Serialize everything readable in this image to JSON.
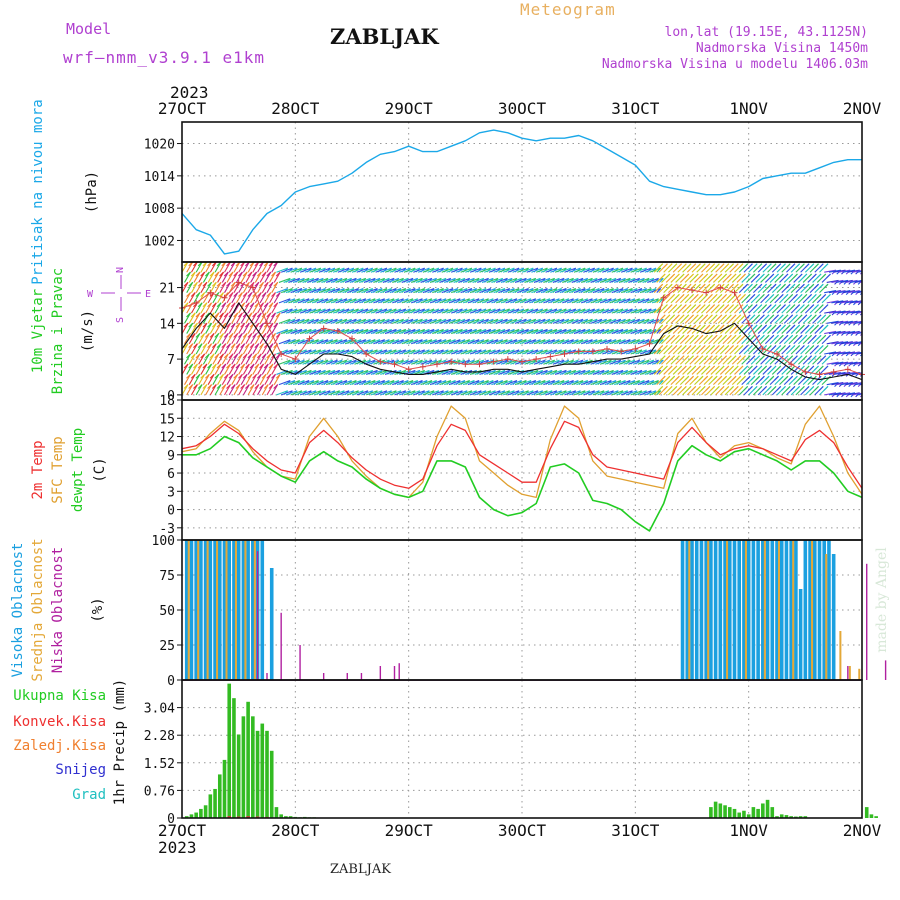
{
  "header": {
    "model_label": "Model",
    "model_name": "wrf—nmm_v3.9.1  e1km",
    "station": "ZABLJAK",
    "chart_kind": "Meteogram",
    "coords": "lon,lat (19.15E, 43.1125N)",
    "elevation": "Nadmorska Visina 1450m",
    "model_elevation": "Nadmorska Visina u modelu 1406.03m",
    "footer_station": "ZABLJAK",
    "credit": "made by Angel"
  },
  "time_axis": {
    "top_year": "2023",
    "bottom_year": "2023",
    "ticks": [
      "27OCT",
      "28OCT",
      "29OCT",
      "30OCT",
      "31OCT",
      "1NOV",
      "2NOV"
    ],
    "range_hours": [
      0,
      144
    ]
  },
  "colors": {
    "pressure": "#1ba8e8",
    "t2m": "#ee3030",
    "sfc": "#e0a030",
    "dew": "#22cc22",
    "high": "#1ba0e0",
    "mid": "#e4a838",
    "low": "#b020a0",
    "precip": "#33bb22",
    "conv": "#e03030",
    "purple_text": "#b040d0",
    "orange_text": "#e8b060"
  },
  "chart_data": [
    {
      "type": "line",
      "panel": "pressure",
      "ylabel_lines": [
        "Pritisak na nivou mora",
        "(hPa)"
      ],
      "ylim": [
        998,
        1024
      ],
      "yticks": [
        1002,
        1008,
        1014,
        1020
      ],
      "grid": true,
      "series": [
        {
          "x": [
            0,
            3,
            6,
            9,
            12,
            15,
            18,
            21,
            24,
            27,
            30,
            33,
            36,
            39,
            42,
            45,
            48,
            51,
            54,
            57,
            60,
            63,
            66,
            69,
            72,
            75,
            78,
            81,
            84,
            87,
            90,
            93,
            96,
            99,
            102,
            105,
            108,
            111,
            114,
            117,
            120,
            123,
            126,
            129,
            132,
            135,
            138,
            141,
            144
          ],
          "y": [
            1007,
            1004,
            1003,
            999.5,
            1000,
            1004,
            1007,
            1008.5,
            1011,
            1012,
            1012.5,
            1013,
            1014.5,
            1016.5,
            1018,
            1018.5,
            1019.5,
            1018.5,
            1018.5,
            1019.5,
            1020.5,
            1022,
            1022.5,
            1022,
            1021,
            1020.5,
            1021,
            1021,
            1021.5,
            1020.5,
            1019,
            1017.5,
            1016,
            1013,
            1012,
            1011.5,
            1011,
            1010.5,
            1010.5,
            1011,
            1012,
            1013.5,
            1014,
            1014.5,
            1014.5,
            1015.5,
            1016.5,
            1017,
            1017
          ]
        }
      ]
    },
    {
      "type": "line",
      "panel": "wind",
      "ylabel_lines": [
        "10m Vjetar",
        "Brzina i Pravac",
        "(m/s)"
      ],
      "compass": {
        "north": "N",
        "south": "S",
        "west": "W",
        "east": "E"
      },
      "ylim": [
        -1,
        26
      ],
      "yticks": [
        0,
        7,
        14,
        21
      ],
      "grid": true,
      "series": [
        {
          "name": "speed",
          "x": [
            0,
            3,
            6,
            9,
            12,
            15,
            18,
            21,
            24,
            27,
            30,
            33,
            36,
            39,
            42,
            45,
            48,
            51,
            54,
            57,
            60,
            63,
            66,
            69,
            72,
            75,
            78,
            81,
            84,
            87,
            90,
            93,
            96,
            99,
            102,
            105,
            108,
            111,
            114,
            117,
            120,
            123,
            126,
            129,
            132,
            135,
            138,
            141,
            144
          ],
          "y": [
            9,
            13,
            16,
            13,
            18,
            14,
            10,
            5,
            4,
            6,
            8,
            8,
            7.5,
            6,
            5,
            4.5,
            4,
            4,
            4.5,
            5,
            4.5,
            4.5,
            5,
            5,
            4.5,
            5,
            5.5,
            6,
            6,
            6.5,
            7,
            7,
            7.5,
            8,
            12,
            13.5,
            13,
            12,
            12.5,
            14,
            11,
            8,
            7,
            5,
            3.5,
            3,
            3.5,
            4,
            3
          ]
        },
        {
          "name": "gust",
          "x": [
            0,
            3,
            6,
            9,
            12,
            15,
            18,
            21,
            24,
            27,
            30,
            33,
            36,
            39,
            42,
            45,
            48,
            51,
            54,
            57,
            60,
            63,
            66,
            69,
            72,
            75,
            78,
            81,
            84,
            87,
            90,
            93,
            96,
            99,
            102,
            105,
            108,
            111,
            114,
            117,
            120,
            123,
            126,
            129,
            132,
            135,
            138,
            141,
            144
          ],
          "y": [
            17,
            18,
            20,
            19,
            22,
            21,
            14,
            8,
            7,
            11,
            13,
            12.5,
            11,
            8,
            6.5,
            6,
            5,
            5.5,
            6,
            6.5,
            6,
            6,
            6.5,
            7,
            6.5,
            7,
            7.5,
            8,
            8.5,
            8.5,
            9,
            8.5,
            9,
            10,
            19,
            21,
            20.5,
            20,
            21,
            20,
            14,
            9,
            8,
            6,
            4.5,
            4,
            4.5,
            5,
            4
          ]
        }
      ]
    },
    {
      "type": "line",
      "panel": "temperature",
      "ylabel_lines": [
        "2m Temp",
        "SFC Temp",
        "dewpt Temp",
        "(C)"
      ],
      "ylim": [
        -5,
        18
      ],
      "yticks": [
        -3,
        0,
        3,
        6,
        9,
        12,
        15,
        18
      ],
      "grid": true,
      "series": [
        {
          "name": "2m Temp",
          "x": [
            0,
            3,
            6,
            9,
            12,
            15,
            18,
            21,
            24,
            27,
            30,
            33,
            36,
            39,
            42,
            45,
            48,
            51,
            54,
            57,
            60,
            63,
            66,
            69,
            72,
            75,
            78,
            81,
            84,
            87,
            90,
            93,
            96,
            99,
            102,
            105,
            108,
            111,
            114,
            117,
            120,
            123,
            126,
            129,
            132,
            135,
            138,
            141,
            144
          ],
          "y": [
            10,
            10.5,
            12,
            14,
            12.5,
            10,
            8,
            6.5,
            6,
            11,
            13,
            11,
            8.5,
            6.5,
            5,
            4,
            3.5,
            5,
            10.5,
            14,
            13,
            9,
            7.5,
            6,
            4.5,
            4.5,
            10,
            14.5,
            13.5,
            9,
            7,
            6.5,
            6,
            5.5,
            5,
            11,
            13.5,
            11,
            9,
            10,
            10.5,
            10,
            9,
            8,
            11.5,
            13,
            11,
            7,
            3.5
          ]
        },
        {
          "name": "SFC Temp",
          "x": [
            0,
            3,
            6,
            9,
            12,
            15,
            18,
            21,
            24,
            27,
            30,
            33,
            36,
            39,
            42,
            45,
            48,
            51,
            54,
            57,
            60,
            63,
            66,
            69,
            72,
            75,
            78,
            81,
            84,
            87,
            90,
            93,
            96,
            99,
            102,
            105,
            108,
            111,
            114,
            117,
            120,
            123,
            126,
            129,
            132,
            135,
            138,
            141,
            144
          ],
          "y": [
            9.5,
            10,
            12.5,
            14.5,
            13,
            9.5,
            7,
            5.5,
            5,
            12,
            15,
            12,
            8,
            5.5,
            3.5,
            2.5,
            2,
            4.5,
            12,
            17,
            15,
            8,
            6,
            4,
            2.5,
            2,
            11.5,
            17,
            15,
            8,
            5.5,
            5,
            4.5,
            4,
            3.5,
            12.5,
            15,
            11,
            8.5,
            10.5,
            11,
            10,
            8.5,
            7.5,
            14,
            17,
            12,
            6,
            2.5
          ]
        },
        {
          "name": "dewpt Temp",
          "x": [
            0,
            3,
            6,
            9,
            12,
            15,
            18,
            21,
            24,
            27,
            30,
            33,
            36,
            39,
            42,
            45,
            48,
            51,
            54,
            57,
            60,
            63,
            66,
            69,
            72,
            75,
            78,
            81,
            84,
            87,
            90,
            93,
            96,
            99,
            102,
            105,
            108,
            111,
            114,
            117,
            120,
            123,
            126,
            129,
            132,
            135,
            138,
            141,
            144
          ],
          "y": [
            9,
            9,
            10,
            12,
            11,
            8.5,
            7,
            5.5,
            4.5,
            8,
            9.5,
            8,
            7,
            5,
            3.5,
            2.5,
            2,
            3,
            8,
            8,
            7,
            2,
            0,
            -1,
            -0.5,
            1,
            7,
            7.5,
            6,
            1.5,
            1,
            0,
            -2,
            -3.5,
            1,
            8,
            10.5,
            9,
            8,
            9.5,
            10,
            9,
            8,
            6.5,
            8,
            8,
            6,
            3,
            2
          ]
        }
      ]
    },
    {
      "type": "bar",
      "panel": "cloud",
      "ylabel_lines": [
        "Visoka Oblacnost",
        "Srednja Oblacnost",
        "Niska Oblacnost",
        "(%)"
      ],
      "ylim": [
        0,
        100
      ],
      "yticks": [
        0,
        25,
        50,
        75,
        100
      ],
      "grid": true,
      "series": [
        {
          "name": "Visoka Oblacnost",
          "x": [
            1,
            2,
            3,
            4,
            5,
            6,
            7,
            8,
            9,
            10,
            11,
            12,
            13,
            14,
            15,
            16,
            17,
            19,
            106,
            107,
            108,
            109,
            110,
            111,
            112,
            113,
            114,
            115,
            116,
            117,
            118,
            119,
            120,
            121,
            122,
            123,
            124,
            125,
            126,
            127,
            128,
            129,
            130,
            131,
            132,
            133,
            134,
            135,
            136,
            137,
            138
          ],
          "y": [
            100,
            100,
            100,
            100,
            100,
            100,
            100,
            100,
            100,
            100,
            100,
            100,
            100,
            100,
            100,
            100,
            100,
            80,
            100,
            100,
            100,
            100,
            100,
            100,
            100,
            100,
            100,
            100,
            100,
            100,
            100,
            100,
            100,
            100,
            100,
            100,
            100,
            100,
            100,
            100,
            100,
            100,
            100,
            65,
            100,
            100,
            100,
            100,
            100,
            100,
            90
          ]
        },
        {
          "name": "Srednja Oblacnost",
          "x": [
            1,
            3,
            5,
            7,
            9,
            11,
            13,
            15,
            107,
            111,
            115,
            119,
            123,
            126,
            129,
            133,
            136,
            139,
            141,
            143
          ],
          "y": [
            100,
            100,
            100,
            100,
            100,
            100,
            100,
            100,
            100,
            100,
            100,
            100,
            100,
            100,
            100,
            100,
            90,
            35,
            10,
            8
          ]
        },
        {
          "name": "Niska Oblacnost",
          "x": [
            16,
            18,
            21,
            25,
            30,
            35,
            38,
            42,
            45,
            46,
            141,
            145,
            149
          ],
          "y": [
            92,
            5,
            48,
            25,
            5,
            5,
            5,
            10,
            10,
            12,
            10,
            83,
            14
          ]
        }
      ]
    },
    {
      "type": "bar",
      "panel": "precip",
      "ylabel_lines": [
        "1hr Precip (mm)"
      ],
      "legend_lines": [
        "Ukupna Kisa",
        "Konvek.Kisa",
        "Zaledj.Kisa",
        "Snijeg",
        "Grad"
      ],
      "ylim": [
        0,
        3.8
      ],
      "yticks": [
        0,
        0.76,
        1.52,
        2.28,
        3.04
      ],
      "grid": true,
      "series": [
        {
          "name": "Ukupna Kisa",
          "x": [
            1,
            2,
            3,
            4,
            5,
            6,
            7,
            8,
            9,
            10,
            11,
            12,
            13,
            14,
            15,
            16,
            17,
            18,
            19,
            20,
            21,
            22,
            23,
            24,
            25,
            26,
            27,
            28,
            112,
            113,
            114,
            115,
            116,
            117,
            118,
            119,
            120,
            121,
            122,
            123,
            124,
            125,
            126,
            127,
            128,
            129,
            130,
            131,
            132,
            145,
            146,
            147
          ],
          "y": [
            0.05,
            0.1,
            0.15,
            0.25,
            0.35,
            0.65,
            0.8,
            1.2,
            1.6,
            3.7,
            3.3,
            2.3,
            2.8,
            3.2,
            2.8,
            2.4,
            2.6,
            2.4,
            1.85,
            0.3,
            0.1,
            0.05,
            0.05,
            0.03,
            0.02,
            0.03,
            0.02,
            0.02,
            0.3,
            0.45,
            0.4,
            0.35,
            0.3,
            0.25,
            0.15,
            0.2,
            0.1,
            0.3,
            0.25,
            0.4,
            0.5,
            0.3,
            0.05,
            0.1,
            0.08,
            0.05,
            0.04,
            0.05,
            0.05,
            0.3,
            0.1,
            0.05
          ]
        },
        {
          "name": "Konvek.Kisa",
          "x": [
            10,
            12,
            14,
            16,
            18
          ],
          "y": [
            0.05,
            0.04,
            0.05,
            0.04,
            0.03
          ]
        }
      ]
    }
  ]
}
